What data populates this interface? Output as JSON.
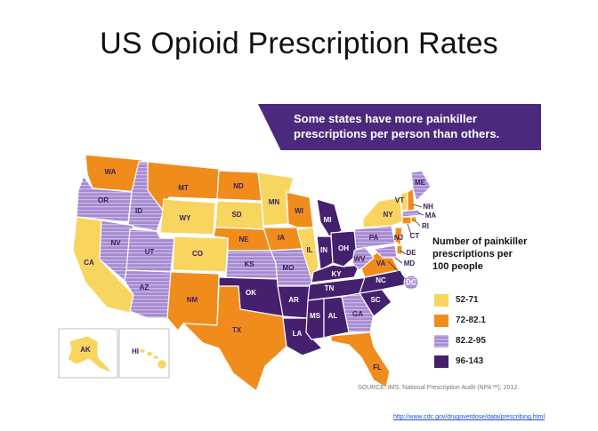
{
  "title": "US Opioid Prescription Rates",
  "banner": "Some states have more painkiller prescriptions per person than others.",
  "legend": {
    "title": "Number of painkiller prescriptions per 100 people",
    "items": [
      {
        "label": "52-71",
        "color": "#f8d55f"
      },
      {
        "label": "72-82.1",
        "color": "#f08c1c"
      },
      {
        "label": "82.2-95",
        "color": "#a68ad0"
      },
      {
        "label": "96-143",
        "color": "#45206f"
      }
    ]
  },
  "states": {
    "WA": "WA",
    "OR": "OR",
    "CA": "CA",
    "ID": "ID",
    "NV": "NV",
    "MT": "MT",
    "WY": "WY",
    "UT": "UT",
    "AZ": "AZ",
    "CO": "CO",
    "NM": "NM",
    "ND": "ND",
    "SD": "SD",
    "NE": "NE",
    "KS": "KS",
    "OK": "OK",
    "TX": "TX",
    "MN": "MN",
    "IA": "IA",
    "MO": "MO",
    "AR": "AR",
    "LA": "LA",
    "WI": "WI",
    "IL": "IL",
    "MI": "MI",
    "IN": "IN",
    "OH": "OH",
    "KY": "KY",
    "TN": "TN",
    "MS": "MS",
    "AL": "AL",
    "GA": "GA",
    "FL": "FL",
    "SC": "SC",
    "NC": "NC",
    "VA": "VA",
    "WV": "WV",
    "PA": "PA",
    "NY": "NY",
    "VT": "VT",
    "ME": "ME",
    "NH": "NH",
    "MA": "MA",
    "RI": "RI",
    "CT": "CT",
    "NJ": "NJ",
    "DE": "DE",
    "MD": "MD",
    "DC": "DC",
    "AK": "AK",
    "HI": "HI"
  },
  "source": "SOURCE: IMS, National Prescription Audit (NPA™), 2012.",
  "url": "http://www.cdc.gov/drugoverdose/data/prescribing.html"
}
